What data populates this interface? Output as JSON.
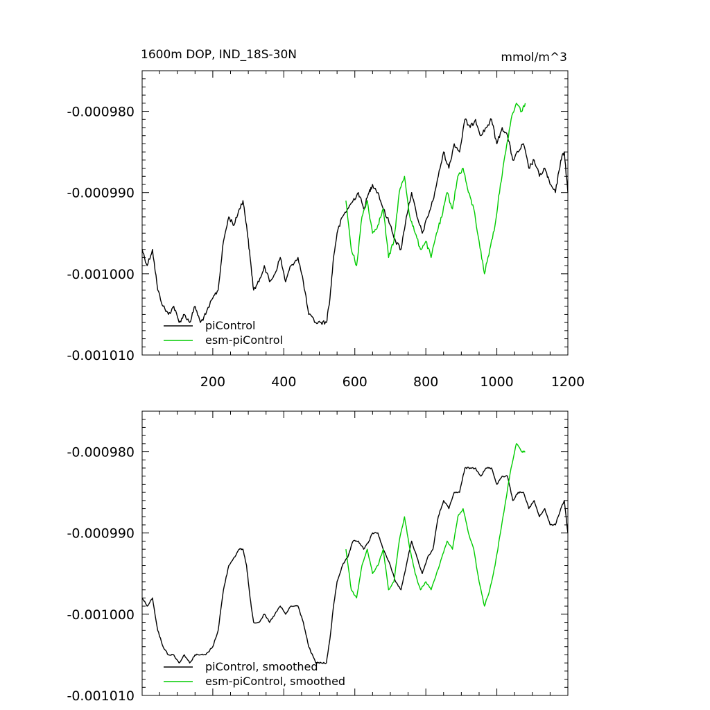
{
  "chart_data": [
    {
      "type": "line",
      "title": "1600m DOP, IND_18S-30N",
      "units": "mmol/m^3",
      "xlim": [
        1,
        1200
      ],
      "ylim": [
        -0.00101,
        -0.000975
      ],
      "x_ticks": [
        200,
        400,
        600,
        800,
        1000,
        1200
      ],
      "x_tick_labels": [
        "200",
        "400",
        "600",
        "800",
        "1000",
        "1200"
      ],
      "y_ticks": [
        -0.00098,
        -0.00099,
        -0.001,
        -0.00101
      ],
      "y_tick_labels": [
        "-0.000980",
        "-0.000990",
        "-0.001000",
        "-0.001010"
      ],
      "grid": false,
      "legend_position": "bottom-left",
      "series": [
        {
          "name": "piControl",
          "color": "#000000",
          "x": [
            1,
            15,
            30,
            45,
            60,
            75,
            90,
            105,
            120,
            135,
            150,
            165,
            180,
            200,
            215,
            230,
            245,
            260,
            275,
            285,
            295,
            305,
            315,
            330,
            345,
            360,
            375,
            390,
            405,
            420,
            440,
            455,
            470,
            490,
            505,
            520,
            530,
            540,
            550,
            565,
            580,
            595,
            610,
            625,
            640,
            650,
            665,
            680,
            700,
            715,
            730,
            745,
            760,
            775,
            790,
            805,
            820,
            835,
            850,
            865,
            880,
            895,
            910,
            925,
            940,
            955,
            970,
            985,
            1000,
            1015,
            1030,
            1045,
            1060,
            1075,
            1090,
            1105,
            1120,
            1135,
            1150,
            1165,
            1180,
            1190,
            1200
          ],
          "y": [
            -0.000997,
            -0.000999,
            -0.000997,
            -0.001002,
            -0.001004,
            -0.001005,
            -0.001004,
            -0.001006,
            -0.001005,
            -0.001006,
            -0.001004,
            -0.001006,
            -0.001005,
            -0.001003,
            -0.001002,
            -0.000996,
            -0.000993,
            -0.000994,
            -0.000992,
            -0.000991,
            -0.000994,
            -0.000998,
            -0.001002,
            -0.001001,
            -0.000999,
            -0.001001,
            -0.001,
            -0.000998,
            -0.001001,
            -0.000999,
            -0.000998,
            -0.001001,
            -0.001005,
            -0.001006,
            -0.001006,
            -0.001006,
            -0.001003,
            -0.000998,
            -0.000995,
            -0.000993,
            -0.000992,
            -0.000991,
            -0.00099,
            -0.000992,
            -0.00099,
            -0.000989,
            -0.00099,
            -0.000992,
            -0.000994,
            -0.000996,
            -0.000997,
            -0.000993,
            -0.00099,
            -0.000993,
            -0.000995,
            -0.000993,
            -0.000991,
            -0.000988,
            -0.000985,
            -0.000987,
            -0.000984,
            -0.000985,
            -0.000981,
            -0.000982,
            -0.000981,
            -0.000983,
            -0.000982,
            -0.000981,
            -0.000984,
            -0.000982,
            -0.000983,
            -0.000986,
            -0.000985,
            -0.000984,
            -0.000987,
            -0.000986,
            -0.000988,
            -0.000987,
            -0.000989,
            -0.00099,
            -0.000986,
            -0.000985,
            -0.00099
          ]
        },
        {
          "name": "esm-piControl",
          "color": "#00cc00",
          "x": [
            575,
            590,
            605,
            620,
            635,
            650,
            665,
            680,
            695,
            710,
            725,
            740,
            755,
            770,
            785,
            800,
            815,
            830,
            845,
            860,
            875,
            890,
            905,
            920,
            935,
            950,
            965,
            980,
            995,
            1010,
            1025,
            1040,
            1055,
            1070,
            1080
          ],
          "y": [
            -0.000991,
            -0.000997,
            -0.000999,
            -0.000993,
            -0.000991,
            -0.000995,
            -0.000994,
            -0.000992,
            -0.000998,
            -0.000996,
            -0.00099,
            -0.000988,
            -0.000993,
            -0.000995,
            -0.000997,
            -0.000996,
            -0.000998,
            -0.000995,
            -0.000993,
            -0.00099,
            -0.000992,
            -0.000988,
            -0.000987,
            -0.00099,
            -0.000992,
            -0.000996,
            -0.001,
            -0.000997,
            -0.000994,
            -0.000989,
            -0.000985,
            -0.000981,
            -0.000979,
            -0.00098,
            -0.000979
          ]
        }
      ]
    },
    {
      "type": "line",
      "xlim": [
        1,
        1200
      ],
      "ylim": [
        -0.00101,
        -0.000975
      ],
      "x_ticks": [
        200,
        400,
        600,
        800,
        1000,
        1200
      ],
      "y_ticks": [
        -0.00098,
        -0.00099,
        -0.001,
        -0.00101
      ],
      "y_tick_labels": [
        "-0.000980",
        "-0.000990",
        "-0.001000",
        "-0.001010"
      ],
      "grid": false,
      "legend_position": "bottom-left",
      "series": [
        {
          "name": "piControl, smoothed",
          "color": "#000000",
          "x": [
            1,
            15,
            30,
            45,
            60,
            75,
            90,
            105,
            120,
            135,
            150,
            165,
            180,
            200,
            215,
            230,
            245,
            260,
            275,
            285,
            295,
            305,
            315,
            330,
            345,
            360,
            375,
            390,
            405,
            420,
            440,
            455,
            470,
            490,
            505,
            520,
            530,
            540,
            550,
            565,
            580,
            595,
            610,
            625,
            640,
            650,
            665,
            680,
            700,
            715,
            730,
            745,
            760,
            775,
            790,
            805,
            820,
            835,
            850,
            865,
            880,
            895,
            910,
            925,
            940,
            955,
            970,
            985,
            1000,
            1015,
            1030,
            1045,
            1060,
            1075,
            1090,
            1105,
            1120,
            1135,
            1150,
            1165,
            1180,
            1190,
            1200
          ],
          "y": [
            -0.000998,
            -0.000999,
            -0.000998,
            -0.001002,
            -0.001004,
            -0.001005,
            -0.001005,
            -0.001006,
            -0.001005,
            -0.001006,
            -0.001005,
            -0.001005,
            -0.001005,
            -0.001004,
            -0.001002,
            -0.000997,
            -0.000994,
            -0.000993,
            -0.000992,
            -0.000992,
            -0.000994,
            -0.000998,
            -0.001001,
            -0.001001,
            -0.001,
            -0.001001,
            -0.001,
            -0.000999,
            -0.001,
            -0.000999,
            -0.000999,
            -0.001001,
            -0.001004,
            -0.001006,
            -0.001006,
            -0.001006,
            -0.001003,
            -0.000999,
            -0.000996,
            -0.000994,
            -0.000993,
            -0.000991,
            -0.000991,
            -0.000992,
            -0.000991,
            -0.00099,
            -0.00099,
            -0.000992,
            -0.000994,
            -0.000996,
            -0.000997,
            -0.000994,
            -0.000991,
            -0.000993,
            -0.000995,
            -0.000993,
            -0.000992,
            -0.000988,
            -0.000986,
            -0.000987,
            -0.000985,
            -0.000985,
            -0.000982,
            -0.000982,
            -0.000982,
            -0.000983,
            -0.000982,
            -0.000982,
            -0.000984,
            -0.000983,
            -0.000983,
            -0.000986,
            -0.000985,
            -0.000985,
            -0.000987,
            -0.000986,
            -0.000988,
            -0.000987,
            -0.000989,
            -0.000989,
            -0.000987,
            -0.000986,
            -0.00099
          ]
        },
        {
          "name": "esm-piControl, smoothed",
          "color": "#00cc00",
          "x": [
            575,
            590,
            605,
            620,
            635,
            650,
            665,
            680,
            695,
            710,
            725,
            740,
            755,
            770,
            785,
            800,
            815,
            830,
            845,
            860,
            875,
            890,
            905,
            920,
            935,
            950,
            965,
            980,
            995,
            1010,
            1025,
            1040,
            1055,
            1070,
            1080
          ],
          "y": [
            -0.000992,
            -0.000997,
            -0.000998,
            -0.000994,
            -0.000992,
            -0.000995,
            -0.000994,
            -0.000992,
            -0.000997,
            -0.000996,
            -0.000991,
            -0.000988,
            -0.000992,
            -0.000995,
            -0.000997,
            -0.000996,
            -0.000997,
            -0.000995,
            -0.000993,
            -0.000991,
            -0.000992,
            -0.000988,
            -0.000987,
            -0.00099,
            -0.000992,
            -0.000996,
            -0.000999,
            -0.000997,
            -0.000994,
            -0.00099,
            -0.000986,
            -0.000982,
            -0.000979,
            -0.00098,
            -0.00098
          ]
        }
      ]
    }
  ]
}
